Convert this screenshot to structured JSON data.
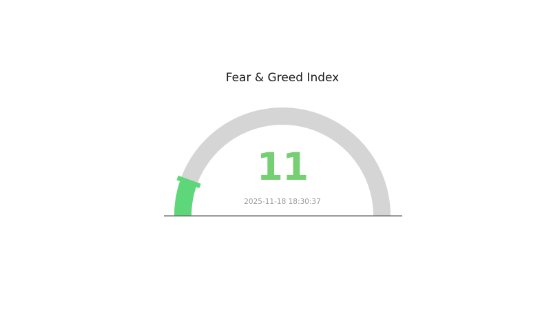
{
  "page": {
    "background": "#ffffff"
  },
  "chart_data": {
    "type": "gauge",
    "title": "Fear & Greed Index",
    "value": 11,
    "min": 0,
    "max": 100,
    "arc_span_degrees": 180,
    "timestamp": "2025-11-18 18:30:37",
    "legend": "none",
    "colors": {
      "track": "#d5d5d5",
      "progress": "#5ed67a",
      "marker": "#5ed67a",
      "value_text": "#76d073",
      "title_text": "#1c1c1c",
      "timestamp_text": "#9a9a9a",
      "baseline": "#6e6e6e"
    }
  }
}
